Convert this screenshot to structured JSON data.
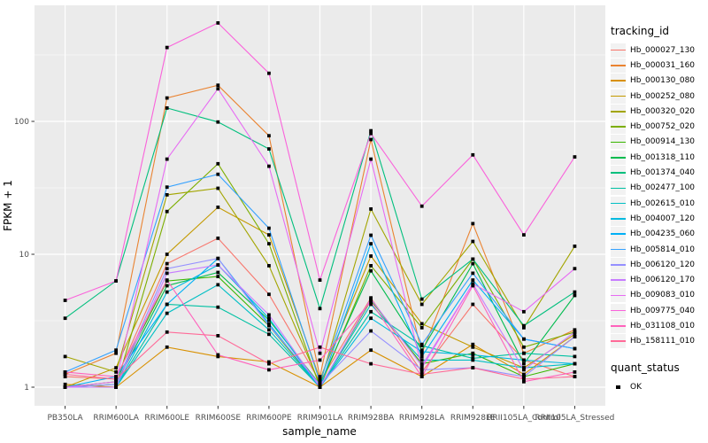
{
  "figure": {
    "background": "#FFFFFF",
    "panel_background": "#EBEBEB",
    "grid_color": "#FFFFFF",
    "tick_color": "#333333",
    "tick_label_color": "#4D4D4D",
    "axis_title_color": "#000000",
    "marker_color": "#000000"
  },
  "axes": {
    "x_title": "sample_name",
    "y_title": "FPKM + 1",
    "y_tick_labels": [
      "1",
      "10",
      "100"
    ]
  },
  "legend": {
    "tracking_title": "tracking_id",
    "quant_title": "quant_status",
    "quant_items": [
      {
        "label": "OK"
      }
    ]
  },
  "chart_data": {
    "type": "line",
    "title": "",
    "xlabel": "sample_name",
    "ylabel": "FPKM + 1",
    "y_scale": "log10",
    "y_ticks": [
      1,
      10,
      100
    ],
    "y_minor_ticks": [
      3.162,
      31.62,
      316.2
    ],
    "ylim": [
      0.72,
      750
    ],
    "grid": true,
    "legend_position": "right",
    "marker": "filled-black-square (quant_status = OK at every point)",
    "categories": [
      "PB350LA",
      "RRIM600LA",
      "RRIM600LE",
      "RRIM600SE",
      "RRIM600PE",
      "RRIM901LA",
      "RRIM928BA",
      "RRIM928LA",
      "RRIM928LE",
      "RRII105LA_Control",
      "RRII105LA_Stressed"
    ],
    "series": [
      {
        "name": "Hb_000027_130",
        "color": "#F8766D",
        "values": [
          1.2,
          1.15,
          8.5,
          13.2,
          5.0,
          1.1,
          4.7,
          1.3,
          4.2,
          1.6,
          1.2
        ]
      },
      {
        "name": "Hb_000031_160",
        "color": "#EA8331",
        "values": [
          1.25,
          1.8,
          150,
          187,
          78,
          1.2,
          73,
          1.8,
          17,
          1.8,
          2.7
        ]
      },
      {
        "name": "Hb_000130_080",
        "color": "#D89000",
        "values": [
          1.05,
          1.0,
          2.0,
          1.7,
          1.55,
          1.0,
          1.9,
          1.2,
          2.1,
          1.25,
          2.4
        ]
      },
      {
        "name": "Hb_000252_080",
        "color": "#C49A00",
        "values": [
          1.0,
          1.4,
          10,
          22.6,
          14,
          1.15,
          9.7,
          3.0,
          2.0,
          1.4,
          2.5
        ]
      },
      {
        "name": "Hb_000320_020",
        "color": "#A3A500",
        "values": [
          1.7,
          1.3,
          28,
          31.4,
          8.2,
          1.05,
          21.9,
          4.2,
          12.5,
          2.8,
          11.5
        ]
      },
      {
        "name": "Hb_000752_020",
        "color": "#7CAE00",
        "values": [
          1.0,
          1.0,
          21,
          48,
          12,
          1.0,
          8.2,
          2.8,
          9.2,
          2.0,
          2.6
        ]
      },
      {
        "name": "Hb_000914_130",
        "color": "#39B600",
        "values": [
          1.0,
          1.1,
          6.3,
          6.8,
          2.9,
          1.0,
          4.5,
          1.5,
          1.8,
          1.2,
          1.5
        ]
      },
      {
        "name": "Hb_001318_110",
        "color": "#00BB4E",
        "values": [
          1.0,
          1.05,
          5.8,
          7.3,
          3.2,
          1.05,
          7.5,
          1.9,
          8.5,
          1.5,
          4.9
        ]
      },
      {
        "name": "Hb_001374_040",
        "color": "#00BF7D",
        "values": [
          3.3,
          6.3,
          126,
          99,
          62,
          3.9,
          85,
          4.6,
          9.2,
          2.9,
          5.2
        ]
      },
      {
        "name": "Hb_002477_100",
        "color": "#00C1A3",
        "values": [
          1.0,
          1.0,
          4.2,
          4.0,
          2.5,
          1.0,
          3.7,
          2.05,
          1.65,
          1.8,
          1.7
        ]
      },
      {
        "name": "Hb_002615_010",
        "color": "#00BFC4",
        "values": [
          1.0,
          1.0,
          3.6,
          5.9,
          2.7,
          1.0,
          4.2,
          1.6,
          1.6,
          1.4,
          1.5
        ]
      },
      {
        "name": "Hb_004007_120",
        "color": "#00BAE0",
        "values": [
          1.0,
          1.0,
          5.2,
          8.3,
          3.3,
          1.0,
          3.3,
          1.85,
          1.75,
          1.6,
          1.5
        ]
      },
      {
        "name": "Hb_004235_060",
        "color": "#00B0F6",
        "values": [
          1.0,
          1.2,
          4.2,
          9.3,
          3.0,
          1.0,
          12.0,
          1.7,
          6.4,
          2.3,
          1.95
        ]
      },
      {
        "name": "Hb_005814_010",
        "color": "#35A2FF",
        "values": [
          1.3,
          1.9,
          32,
          40,
          15.7,
          1.1,
          13.9,
          2.1,
          7.2,
          2.3,
          1.95
        ]
      },
      {
        "name": "Hb_006120_120",
        "color": "#9590FF",
        "values": [
          1.0,
          1.05,
          7.8,
          9.3,
          2.9,
          1.05,
          2.65,
          1.35,
          1.4,
          1.2,
          2.4
        ]
      },
      {
        "name": "Hb_006120_170",
        "color": "#C77CFF",
        "values": [
          1.0,
          1.0,
          7.2,
          8.3,
          3.5,
          1.0,
          4.6,
          1.45,
          6.0,
          1.35,
          2.6
        ]
      },
      {
        "name": "Hb_009083_010",
        "color": "#E76BF3",
        "values": [
          1.0,
          1.1,
          52,
          176,
          46,
          1.8,
          52,
          1.4,
          6.0,
          3.7,
          7.8
        ]
      },
      {
        "name": "Hb_009775_040",
        "color": "#FA62DB",
        "values": [
          4.5,
          6.3,
          360,
          550,
          230,
          6.4,
          81,
          23,
          56,
          14,
          54
        ]
      },
      {
        "name": "Hb_031108_010",
        "color": "#FF62BC",
        "values": [
          1.3,
          1.2,
          6.4,
          1.75,
          1.35,
          1.6,
          4.4,
          1.2,
          5.8,
          1.1,
          1.3
        ]
      },
      {
        "name": "Hb_158111_010",
        "color": "#FF6A98",
        "values": [
          1.25,
          1.15,
          2.6,
          2.44,
          1.5,
          2.0,
          1.5,
          1.25,
          1.4,
          1.15,
          1.2
        ]
      }
    ]
  }
}
